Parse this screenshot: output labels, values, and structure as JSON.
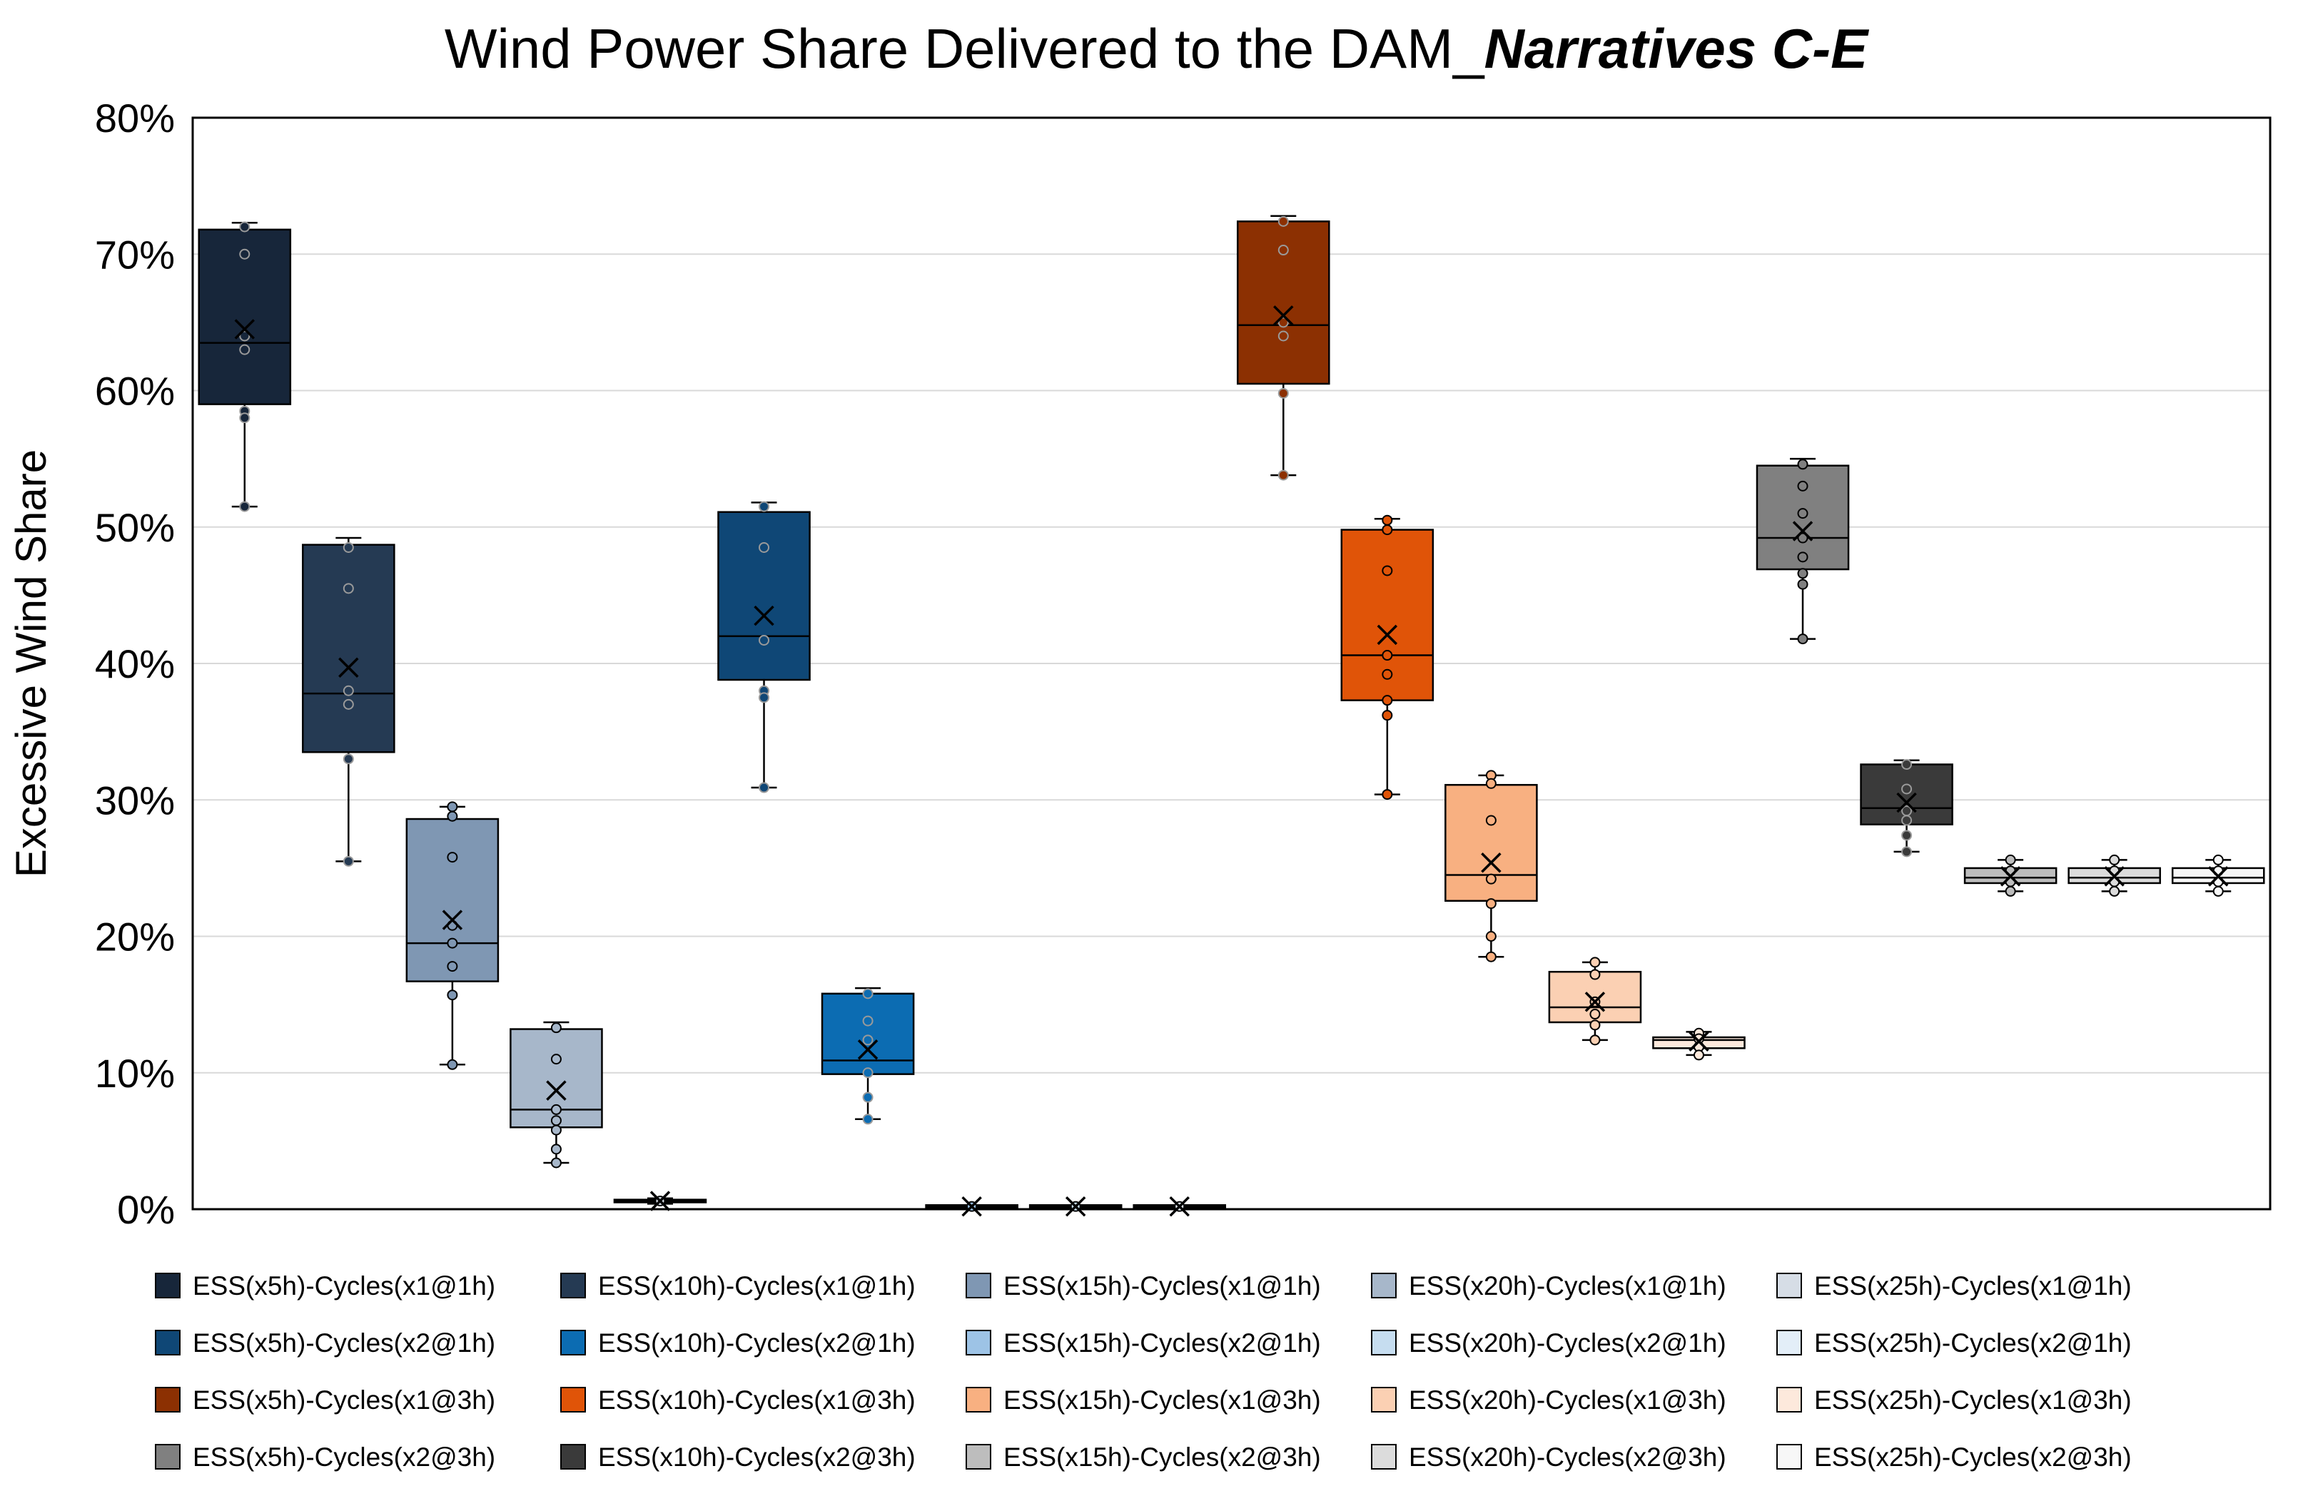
{
  "chart_data": {
    "type": "box",
    "title": {
      "main": "Wind Power Share Delivered to the DAM_",
      "emphasis": "Narratives C-E"
    },
    "xlabel": "",
    "ylabel": "Excessive Wind Share",
    "ylim": [
      0,
      80
    ],
    "yticks": [
      "0%",
      "10%",
      "20%",
      "30%",
      "40%",
      "50%",
      "60%",
      "70%",
      "80%"
    ],
    "grid": true,
    "legend_position": "bottom",
    "series": [
      {
        "name": "ESS(x5h)-Cycles(x1@1h)",
        "color": "#17263a",
        "q1": 59,
        "median": 63.5,
        "q3": 71.8,
        "min": 51.5,
        "max": 72.3,
        "mean": 64.5,
        "points": [
          72,
          70,
          64,
          63,
          58.5,
          58,
          51.5
        ]
      },
      {
        "name": "ESS(x10h)-Cycles(x1@1h)",
        "color": "#253a53",
        "q1": 33.5,
        "median": 37.8,
        "q3": 48.7,
        "min": 25.5,
        "max": 49.2,
        "mean": 39.7,
        "points": [
          48.5,
          45.5,
          38,
          37,
          33,
          25.5
        ]
      },
      {
        "name": "ESS(x15h)-Cycles(x1@1h)",
        "color": "#7f97b3",
        "q1": 16.7,
        "median": 19.5,
        "q3": 28.6,
        "min": 10.6,
        "max": 29.5,
        "mean": 21.2,
        "points": [
          29.5,
          28.8,
          25.8,
          20.8,
          19.5,
          17.8,
          15.7,
          10.6
        ]
      },
      {
        "name": "ESS(x20h)-Cycles(x1@1h)",
        "color": "#a7b7ca",
        "q1": 6,
        "median": 7.3,
        "q3": 13.2,
        "min": 3.4,
        "max": 13.7,
        "mean": 8.7,
        "points": [
          13.3,
          11,
          7.3,
          6.5,
          5.8,
          4.4,
          3.4
        ]
      },
      {
        "name": "ESS(x25h)-Cycles(x1@1h)",
        "color": "#d6dde6",
        "q1": 0.5,
        "median": 0.6,
        "q3": 0.7,
        "min": 0.4,
        "max": 0.8,
        "mean": 0.6,
        "points": [
          0.6
        ]
      },
      {
        "name": "ESS(x5h)-Cycles(x2@1h)",
        "color": "#0f4776",
        "q1": 38.8,
        "median": 42,
        "q3": 51.1,
        "min": 30.9,
        "max": 51.8,
        "mean": 43.5,
        "points": [
          51.5,
          48.5,
          41.7,
          38,
          37.5,
          30.9
        ]
      },
      {
        "name": "ESS(x10h)-Cycles(x2@1h)",
        "color": "#0c6cb2",
        "q1": 9.9,
        "median": 10.9,
        "q3": 15.8,
        "min": 6.6,
        "max": 16.2,
        "mean": 11.7,
        "points": [
          15.8,
          13.8,
          12.4,
          10,
          8.2,
          6.6
        ]
      },
      {
        "name": "ESS(x15h)-Cycles(x2@1h)",
        "color": "#9dc3e6",
        "q1": 0.1,
        "median": 0.2,
        "q3": 0.3,
        "min": 0.1,
        "max": 0.3,
        "mean": 0.2,
        "points": [
          0.2
        ]
      },
      {
        "name": "ESS(x20h)-Cycles(x2@1h)",
        "color": "#c6ddf0",
        "q1": 0.1,
        "median": 0.2,
        "q3": 0.3,
        "min": 0.1,
        "max": 0.3,
        "mean": 0.2,
        "points": [
          0.2
        ]
      },
      {
        "name": "ESS(x25h)-Cycles(x2@1h)",
        "color": "#e3eef8",
        "q1": 0.1,
        "median": 0.2,
        "q3": 0.3,
        "min": 0.1,
        "max": 0.3,
        "mean": 0.2,
        "points": [
          0.2
        ]
      },
      {
        "name": "ESS(x5h)-Cycles(x1@3h)",
        "color": "#8c3002",
        "q1": 60.5,
        "median": 64.8,
        "q3": 72.4,
        "min": 53.8,
        "max": 72.8,
        "mean": 65.5,
        "points": [
          72.4,
          70.3,
          65,
          64,
          59.8,
          53.8
        ]
      },
      {
        "name": "ESS(x10h)-Cycles(x1@3h)",
        "color": "#e05408",
        "q1": 37.3,
        "median": 40.6,
        "q3": 49.8,
        "min": 30.4,
        "max": 50.6,
        "mean": 42.1,
        "points": [
          50.5,
          49.8,
          46.8,
          40.6,
          39.2,
          37.3,
          36.2,
          30.4
        ]
      },
      {
        "name": "ESS(x15h)-Cycles(x1@3h)",
        "color": "#f8b081",
        "q1": 22.6,
        "median": 24.5,
        "q3": 31.1,
        "min": 18.5,
        "max": 31.8,
        "mean": 25.4,
        "points": [
          31.8,
          31.2,
          28.5,
          24.2,
          22.4,
          20,
          18.5
        ]
      },
      {
        "name": "ESS(x20h)-Cycles(x1@3h)",
        "color": "#fbd0b3",
        "q1": 13.7,
        "median": 14.8,
        "q3": 17.4,
        "min": 12.4,
        "max": 18.1,
        "mean": 15.2,
        "points": [
          18.1,
          17.2,
          15.2,
          14.3,
          13.5,
          12.4
        ]
      },
      {
        "name": "ESS(x25h)-Cycles(x1@3h)",
        "color": "#fde9dc",
        "q1": 11.8,
        "median": 12.4,
        "q3": 12.6,
        "min": 11.3,
        "max": 13,
        "mean": 12.3,
        "points": [
          12.9,
          12.5,
          11.9,
          11.3
        ]
      },
      {
        "name": "ESS(x5h)-Cycles(x2@3h)",
        "color": "#808080",
        "q1": 46.9,
        "median": 49.2,
        "q3": 54.5,
        "min": 41.8,
        "max": 55,
        "mean": 49.7,
        "points": [
          54.6,
          53,
          51,
          49.2,
          47.8,
          46.6,
          45.8,
          41.8
        ]
      },
      {
        "name": "ESS(x10h)-Cycles(x2@3h)",
        "color": "#3a3a3a",
        "q1": 28.2,
        "median": 29.4,
        "q3": 32.6,
        "min": 26.2,
        "max": 32.9,
        "mean": 29.8,
        "points": [
          32.6,
          30.8,
          29.2,
          28.5,
          27.4,
          26.2
        ]
      },
      {
        "name": "ESS(x15h)-Cycles(x2@3h)",
        "color": "#bdbdbd",
        "q1": 23.9,
        "median": 24.3,
        "q3": 25,
        "min": 23.3,
        "max": 25.6,
        "mean": 24.4,
        "points": [
          25.6,
          24.8,
          24,
          23.3
        ]
      },
      {
        "name": "ESS(x20h)-Cycles(x2@3h)",
        "color": "#dcdcdc",
        "q1": 23.9,
        "median": 24.3,
        "q3": 25,
        "min": 23.3,
        "max": 25.6,
        "mean": 24.4,
        "points": [
          25.6,
          24.8,
          24,
          23.3
        ]
      },
      {
        "name": "ESS(x25h)-Cycles(x2@3h)",
        "color": "#f7f7f7",
        "q1": 23.9,
        "median": 24.3,
        "q3": 25,
        "min": 23.3,
        "max": 25.6,
        "mean": 24.4,
        "points": [
          25.6,
          24.8,
          24,
          23.3
        ]
      }
    ]
  }
}
